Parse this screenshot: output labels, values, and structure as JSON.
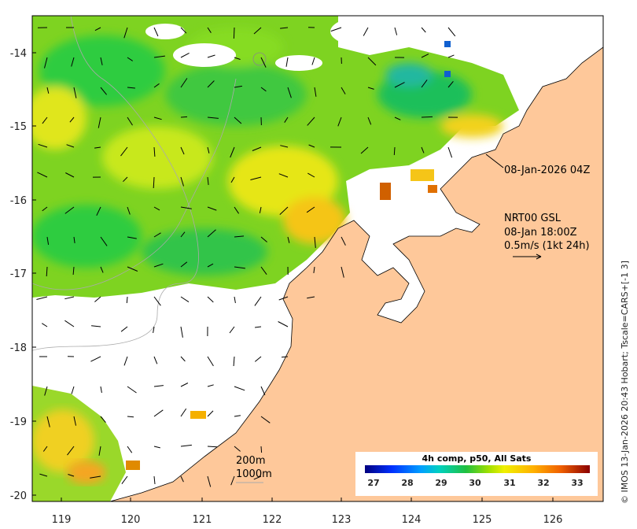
{
  "map": {
    "lon_ticks": [
      "119",
      "120",
      "121",
      "122",
      "123",
      "124",
      "125",
      "126"
    ],
    "lat_ticks": [
      "-14",
      "-15",
      "-16",
      "-17",
      "-18",
      "-19",
      "-20"
    ],
    "swath_label": "08-Jan-2026 04Z",
    "current_model": "NRT00 GSL",
    "current_time": "08-Jan 18:00Z",
    "vector_scale": "0.5m/s (1kt 24h)",
    "depth_contour_1": "200m",
    "depth_contour_2": "1000m",
    "colorbar_title": "4h comp, p50, All Sats",
    "colorbar_ticks": [
      "27",
      "28",
      "29",
      "30",
      "31",
      "32",
      "33"
    ],
    "credit": "© IMOS 13-Jan-2026 20:43 Hobart; Tscale=CARS+[-1 3]"
  },
  "colors": {
    "land": "#fec89a",
    "no_data": "#ffffff",
    "scale_27": "#00007f",
    "scale_28": "#0060ff",
    "scale_29": "#00c0c0",
    "scale_30": "#20c040",
    "scale_31": "#e8f000",
    "scale_32": "#ffa000",
    "scale_33": "#a00000"
  }
}
